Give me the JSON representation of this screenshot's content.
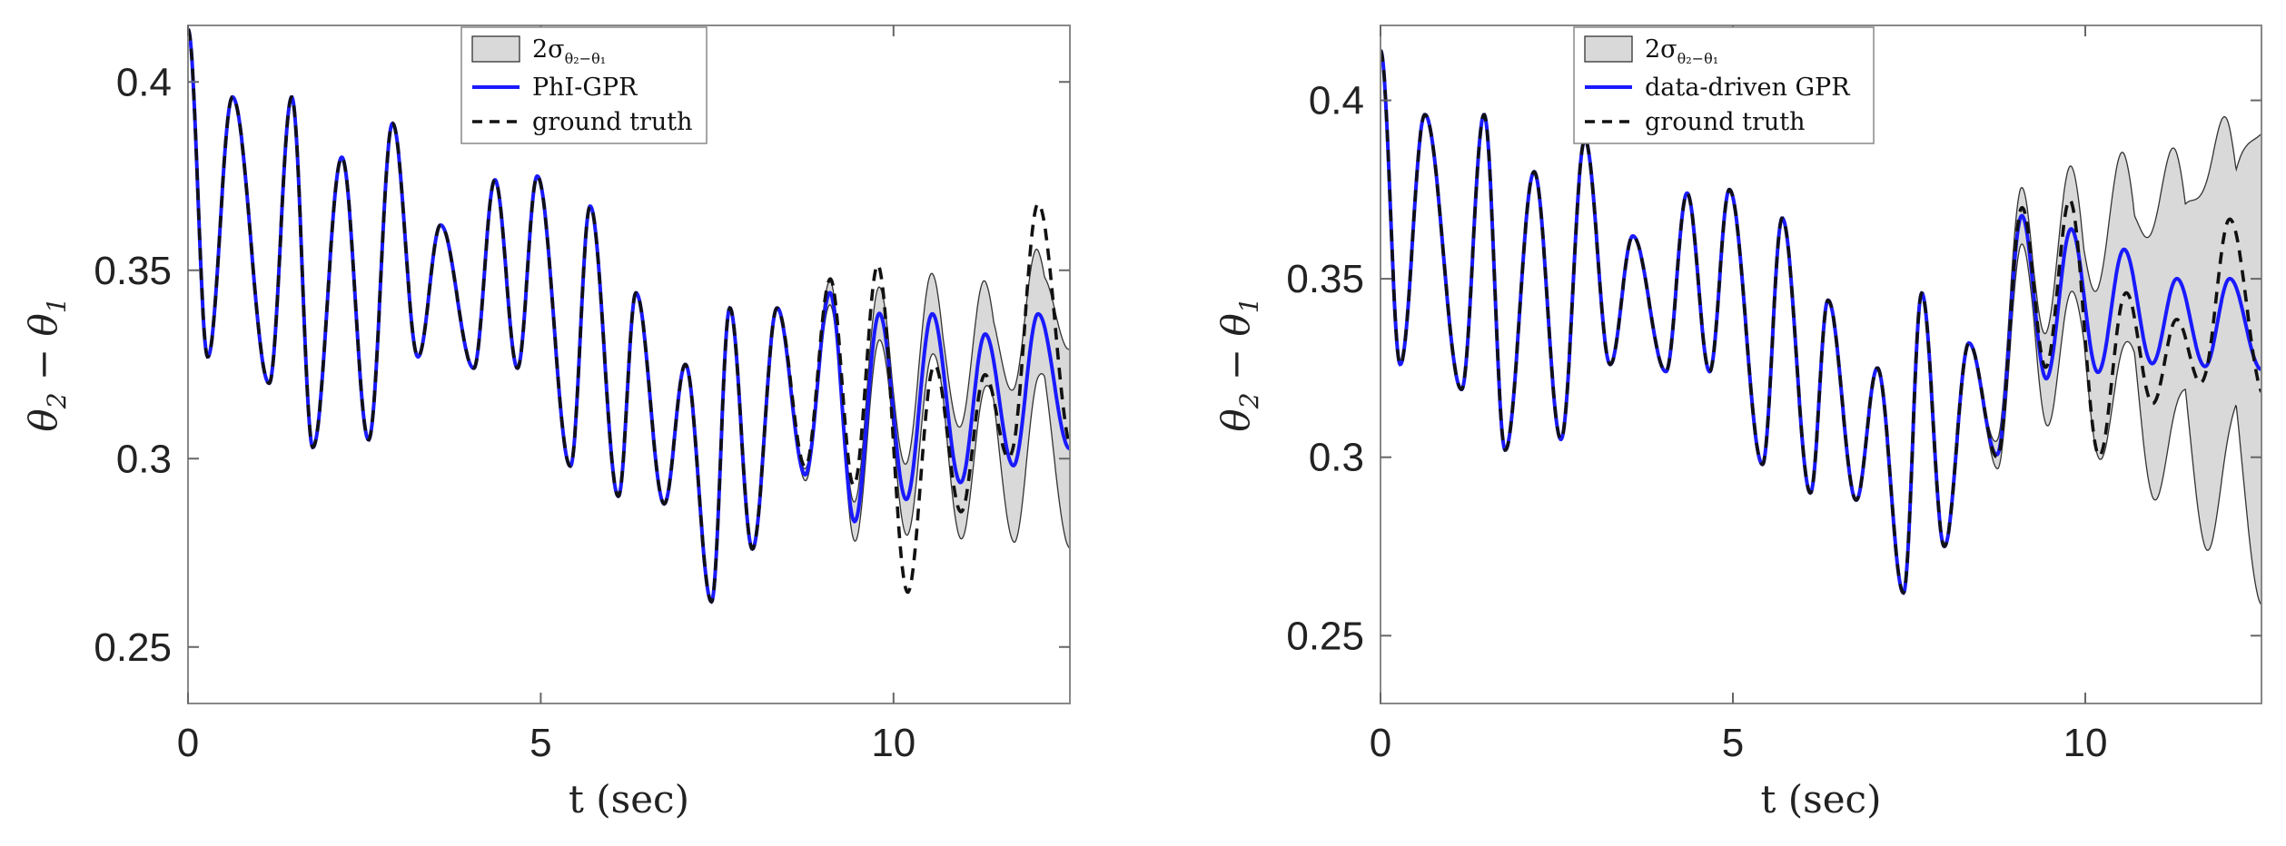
{
  "chart_data": [
    {
      "type": "line",
      "xlabel": "t (sec)",
      "ylabel_parts": [
        "θ",
        "2",
        " − θ",
        "1"
      ],
      "xlim": [
        0,
        12.5
      ],
      "ylim": [
        0.235,
        0.415
      ],
      "xticks": [
        "0",
        "5",
        "10"
      ],
      "xtick_values": [
        0,
        5,
        10
      ],
      "yticks": [
        "0.25",
        "0.3",
        "0.35",
        "0.4"
      ],
      "ytick_values": [
        0.25,
        0.3,
        0.35,
        0.4
      ],
      "legend": {
        "placement": "top-center",
        "band": {
          "base": "2σ",
          "sub": "θ₂−θ₁"
        },
        "entries": [
          "PhI-GPR",
          "ground truth"
        ]
      },
      "extrap_start": 8.4,
      "band_growth": 0.24,
      "band_max": 0.064,
      "truth_drift": 0.028,
      "pred_damp": 0.35,
      "pred_offset": 0.0,
      "colors": {
        "band": "#d9d9d9",
        "prediction": "#1a1aff",
        "truth": "#111111"
      },
      "series": [
        {
          "name": "PhI-GPR",
          "style": "solid"
        },
        {
          "name": "ground truth",
          "style": "dashed"
        }
      ],
      "peaks": [
        [
          0.0,
          0.414
        ],
        [
          0.28,
          0.327
        ],
        [
          0.63,
          0.396
        ],
        [
          1.15,
          0.32
        ],
        [
          1.47,
          0.396
        ],
        [
          1.77,
          0.303
        ],
        [
          2.18,
          0.38
        ],
        [
          2.56,
          0.305
        ],
        [
          2.9,
          0.389
        ],
        [
          3.26,
          0.327
        ],
        [
          3.58,
          0.362
        ],
        [
          4.05,
          0.324
        ],
        [
          4.35,
          0.374
        ],
        [
          4.67,
          0.324
        ],
        [
          4.95,
          0.375
        ],
        [
          5.42,
          0.298
        ],
        [
          5.7,
          0.367
        ],
        [
          6.1,
          0.29
        ],
        [
          6.35,
          0.344
        ],
        [
          6.75,
          0.288
        ],
        [
          7.05,
          0.325
        ],
        [
          7.42,
          0.262
        ],
        [
          7.68,
          0.34
        ],
        [
          8.0,
          0.276
        ],
        [
          8.35,
          0.34
        ],
        [
          8.75,
          0.295
        ],
        [
          9.1,
          0.345
        ],
        [
          9.45,
          0.28
        ],
        [
          9.8,
          0.34
        ],
        [
          10.18,
          0.285
        ],
        [
          10.55,
          0.34
        ],
        [
          10.95,
          0.29
        ],
        [
          11.3,
          0.334
        ],
        [
          11.7,
          0.295
        ],
        [
          12.05,
          0.34
        ],
        [
          12.5,
          0.3
        ]
      ]
    },
    {
      "type": "line",
      "xlabel": "t (sec)",
      "ylabel_parts": [
        "θ",
        "2",
        " − θ",
        "1"
      ],
      "xlim": [
        0,
        12.5
      ],
      "ylim": [
        0.231,
        0.421
      ],
      "xticks": [
        "0",
        "5",
        "10"
      ],
      "xtick_values": [
        0,
        5,
        10
      ],
      "yticks": [
        "0.25",
        "0.3",
        "0.35",
        "0.4"
      ],
      "ytick_values": [
        0.25,
        0.3,
        0.35,
        0.4
      ],
      "legend": {
        "placement": "top-center",
        "band": {
          "base": "2σ",
          "sub": "θ₂−θ₁"
        },
        "entries": [
          "data-driven GPR",
          "ground truth"
        ]
      },
      "extrap_start": 8.4,
      "band_growth": 0.6,
      "band_max": 0.082,
      "truth_drift": 0.02,
      "pred_damp": 0.6,
      "pred_offset": 0.007,
      "colors": {
        "band": "#d9d9d9",
        "prediction": "#1a1aff",
        "truth": "#111111"
      },
      "series": [
        {
          "name": "data-driven GPR",
          "style": "solid"
        },
        {
          "name": "ground truth",
          "style": "dashed"
        }
      ],
      "peaks": [
        [
          0.0,
          0.414
        ],
        [
          0.28,
          0.326
        ],
        [
          0.63,
          0.396
        ],
        [
          1.15,
          0.319
        ],
        [
          1.47,
          0.396
        ],
        [
          1.77,
          0.302
        ],
        [
          2.18,
          0.38
        ],
        [
          2.56,
          0.305
        ],
        [
          2.9,
          0.389
        ],
        [
          3.26,
          0.326
        ],
        [
          3.58,
          0.362
        ],
        [
          4.05,
          0.324
        ],
        [
          4.35,
          0.374
        ],
        [
          4.67,
          0.324
        ],
        [
          4.95,
          0.375
        ],
        [
          5.42,
          0.298
        ],
        [
          5.7,
          0.367
        ],
        [
          6.1,
          0.29
        ],
        [
          6.35,
          0.344
        ],
        [
          6.75,
          0.288
        ],
        [
          7.05,
          0.325
        ],
        [
          7.42,
          0.262
        ],
        [
          7.68,
          0.346
        ],
        [
          8.0,
          0.275
        ],
        [
          8.35,
          0.332
        ],
        [
          8.75,
          0.298
        ],
        [
          9.1,
          0.368
        ],
        [
          9.45,
          0.316
        ],
        [
          9.8,
          0.364
        ],
        [
          10.18,
          0.315
        ],
        [
          10.55,
          0.357
        ],
        [
          10.95,
          0.318
        ],
        [
          11.3,
          0.347
        ],
        [
          11.7,
          0.317
        ],
        [
          12.05,
          0.347
        ],
        [
          12.5,
          0.316
        ]
      ]
    }
  ]
}
